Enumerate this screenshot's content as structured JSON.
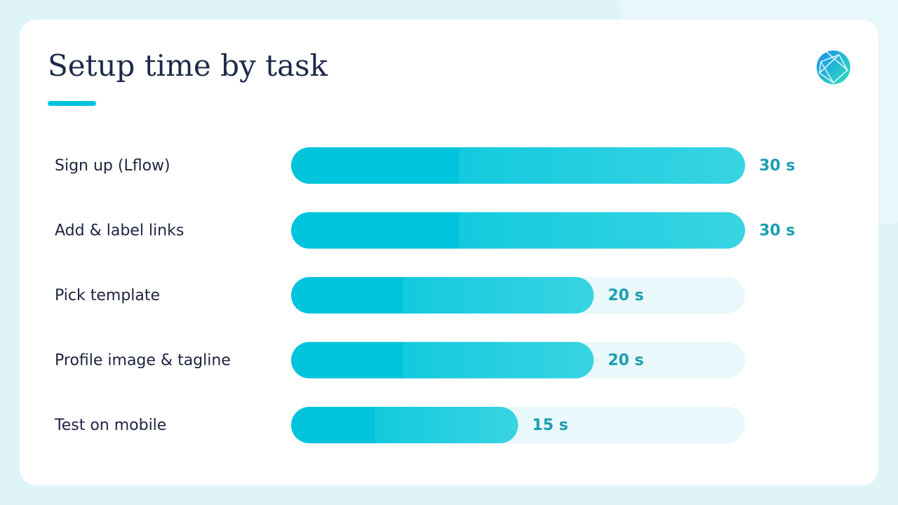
{
  "chart_data": {
    "type": "bar",
    "title": "Setup time by task",
    "categories": [
      "Sign up (Lflow)",
      "Add & label links",
      "Pick template",
      "Profile image & tagline",
      "Test on mobile"
    ],
    "values": [
      30,
      30,
      20,
      20,
      15
    ],
    "value_labels": [
      "30 s",
      "30 s",
      "20 s",
      "20 s",
      "15 s"
    ],
    "color": "#00c4dc",
    "xlim": [
      0,
      30
    ]
  }
}
